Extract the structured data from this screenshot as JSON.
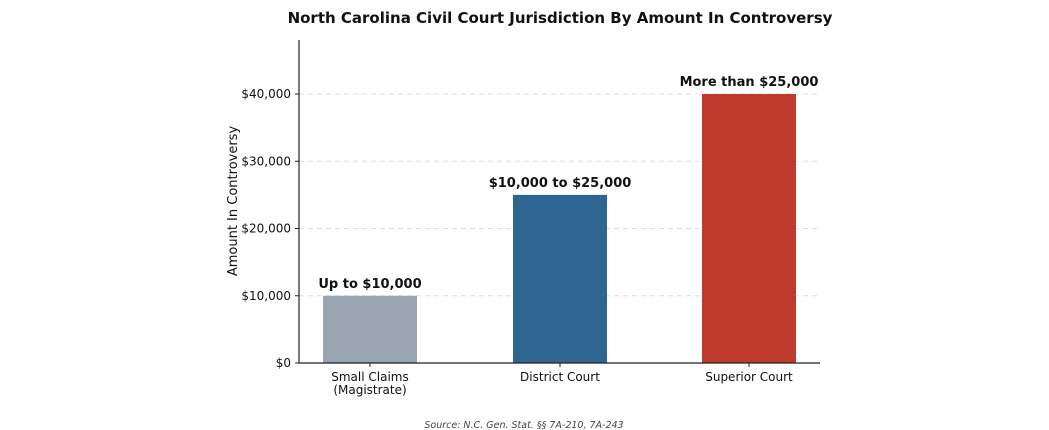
{
  "chart_data": {
    "type": "bar",
    "title": "North Carolina Civil Court Jurisdiction By Amount In Controversy",
    "xlabel": "",
    "ylabel": "Amount In Controversy",
    "categories": [
      [
        "Small Claims",
        "(Magistrate)"
      ],
      [
        "District Court"
      ],
      [
        "Superior Court"
      ]
    ],
    "values": [
      10000,
      25000,
      40000
    ],
    "data_labels": [
      "Up to $10,000",
      "$10,000 to $25,000",
      "More than $25,000"
    ],
    "colors": [
      "#99a5b1",
      "#2f6591",
      "#bd3a2d"
    ],
    "ylim": [
      0,
      48000
    ],
    "yticks": [
      0,
      10000,
      20000,
      30000,
      40000
    ],
    "ytick_labels": [
      "$0",
      "$10,000",
      "$20,000",
      "$30,000",
      "$40,000"
    ],
    "grid": "horizontal dashed",
    "legend": "none"
  },
  "source": "Source: N.C. Gen. Stat. §§ 7A-210, 7A-243"
}
